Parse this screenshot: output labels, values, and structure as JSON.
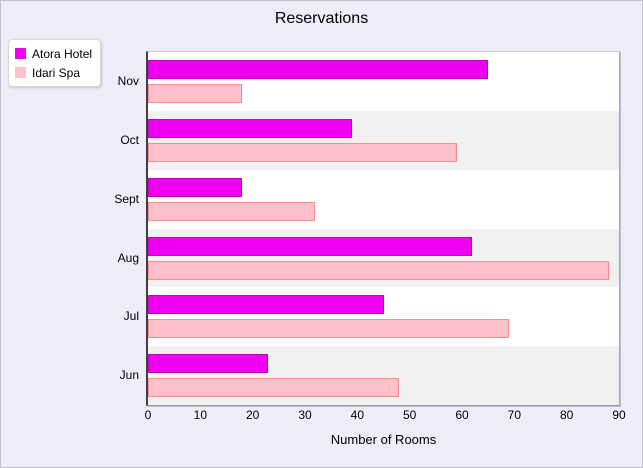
{
  "title": "Reservations",
  "xlabel": "Number of Rooms",
  "legend": {
    "items": [
      {
        "label": "Atora Hotel",
        "color": "#F000F0"
      },
      {
        "label": "Idari Spa",
        "color": "#FFC0CB"
      }
    ]
  },
  "colors": {
    "background": "#EDEDF8",
    "band_alt": "#F1F1F1",
    "band_main": "#FFFFFF",
    "atora_fill": "#F000F0",
    "atora_border": "#C400C4",
    "idari_fill": "#FFC0CB",
    "idari_border": "#F88E8E",
    "axis_line": "#3F3F3F"
  },
  "chart_data": {
    "type": "bar",
    "orientation": "horizontal",
    "title": "Reservations",
    "xlabel": "Number of Rooms",
    "categories": [
      "Nov",
      "Oct",
      "Sept",
      "Aug",
      "Jul",
      "Jun"
    ],
    "series": [
      {
        "name": "Atora Hotel",
        "fill": "#F000F0",
        "border": "#C400C4",
        "values": [
          65,
          39,
          18,
          62,
          45,
          23
        ]
      },
      {
        "name": "Idari Spa",
        "fill": "#FFC0CB",
        "border": "#F88E8E",
        "values": [
          18,
          59,
          32,
          88,
          69,
          48
        ]
      }
    ],
    "xlim": [
      0,
      90
    ],
    "xticks": [
      0,
      10,
      20,
      30,
      40,
      50,
      60,
      70,
      80,
      90
    ],
    "grid": false,
    "row_band_colors": [
      "#FFFFFF",
      "#F1F1F1"
    ],
    "legend_position": "top-left"
  }
}
